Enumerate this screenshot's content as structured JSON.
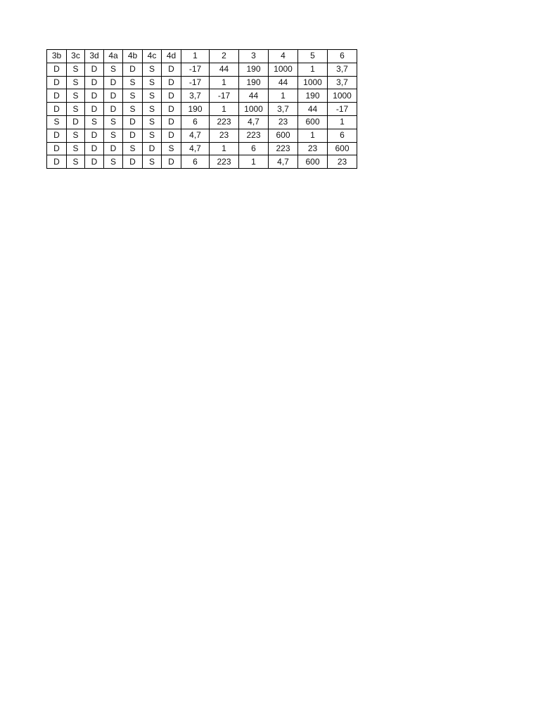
{
  "table": {
    "headers": [
      "3b",
      "3c",
      "3d",
      "4a",
      "4b",
      "4c",
      "4d",
      "1",
      "2",
      "3",
      "4",
      "5",
      "6"
    ],
    "rows": [
      [
        "D",
        "S",
        "D",
        "S",
        "D",
        "S",
        "D",
        "-17",
        "44",
        "190",
        "1000",
        "1",
        "3,7"
      ],
      [
        "D",
        "S",
        "D",
        "D",
        "S",
        "S",
        "D",
        "-17",
        "1",
        "190",
        "44",
        "1000",
        "3,7"
      ],
      [
        "D",
        "S",
        "D",
        "D",
        "S",
        "S",
        "D",
        "3,7",
        "-17",
        "44",
        "1",
        "190",
        "1000"
      ],
      [
        "D",
        "S",
        "D",
        "D",
        "S",
        "S",
        "D",
        "190",
        "1",
        "1000",
        "3,7",
        "44",
        "-17"
      ],
      [
        "S",
        "D",
        "S",
        "S",
        "D",
        "S",
        "D",
        "6",
        "223",
        "4,7",
        "23",
        "600",
        "1"
      ],
      [
        "D",
        "S",
        "D",
        "S",
        "D",
        "S",
        "D",
        "4,7",
        "23",
        "223",
        "600",
        "1",
        "6"
      ],
      [
        "D",
        "S",
        "D",
        "D",
        "S",
        "D",
        "S",
        "4,7",
        "1",
        "6",
        "223",
        "23",
        "600"
      ],
      [
        "D",
        "S",
        "D",
        "S",
        "D",
        "S",
        "D",
        "6",
        "223",
        "1",
        "4,7",
        "600",
        "23"
      ]
    ]
  }
}
